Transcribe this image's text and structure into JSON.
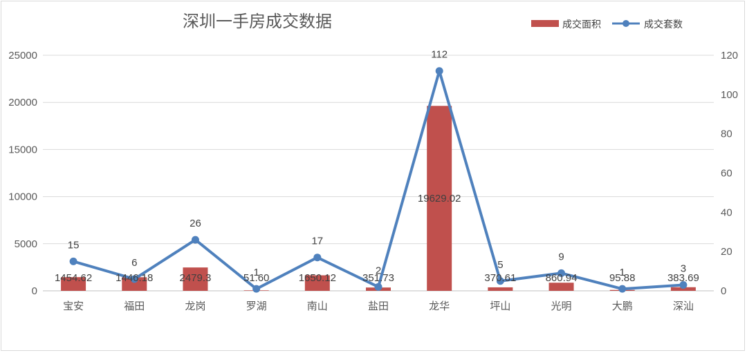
{
  "chart_data": {
    "type": "bar+line",
    "title": "深圳一手房成交数据",
    "categories": [
      "宝安",
      "福田",
      "龙岗",
      "罗湖",
      "南山",
      "盐田",
      "龙华",
      "坪山",
      "光明",
      "大鹏",
      "深汕"
    ],
    "series": [
      {
        "name": "成交面积",
        "type": "bar",
        "axis": "left",
        "color": "#c0504d",
        "values": [
          1454.62,
          1446.18,
          2479.3,
          51.6,
          1650.12,
          351.73,
          19629.02,
          370.61,
          860.94,
          95.88,
          383.69
        ],
        "labels": [
          "1454.62",
          "1446.18",
          "2479.3",
          "51.60",
          "1650.12",
          "351.73",
          "19629.02",
          "370.61",
          "860.94",
          "95.88",
          "383.69"
        ]
      },
      {
        "name": "成交套数",
        "type": "line",
        "axis": "right",
        "color": "#4f81bd",
        "values": [
          15,
          6,
          26,
          1,
          17,
          2,
          112,
          5,
          9,
          1,
          3
        ],
        "labels": [
          "15",
          "6",
          "26",
          "1",
          "17",
          "2",
          "112",
          "5",
          "9",
          "1",
          "3"
        ]
      }
    ],
    "y_left": {
      "lim": [
        0,
        25000
      ],
      "ticks": [
        "0",
        "5000",
        "10000",
        "15000",
        "20000",
        "25000"
      ]
    },
    "y_right": {
      "lim": [
        0,
        120
      ],
      "ticks": [
        "0",
        "20",
        "40",
        "60",
        "80",
        "100",
        "120"
      ]
    },
    "grid": true,
    "legend_position": "top-right"
  }
}
